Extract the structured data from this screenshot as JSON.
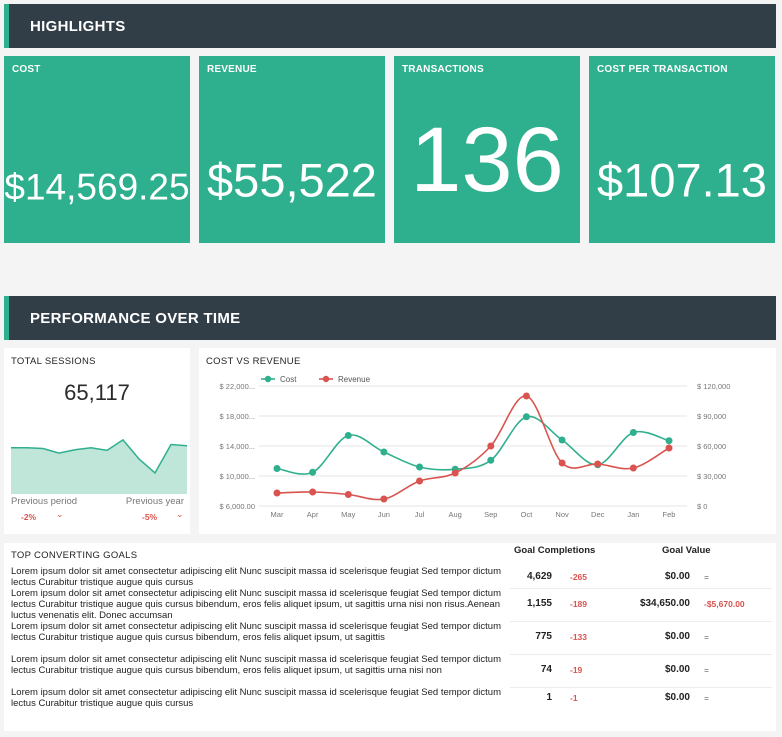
{
  "highlights": {
    "title": "HIGHLIGHTS",
    "kpis": [
      {
        "label": "COST",
        "value": "$14,569.25"
      },
      {
        "label": "REVENUE",
        "value": "$55,522"
      },
      {
        "label": "TRANSACTIONS",
        "value": "136"
      },
      {
        "label": "COST PER TRANSACTION",
        "value": "$107.13"
      }
    ]
  },
  "performance": {
    "title": "PERFORMANCE OVER TIME",
    "sessions": {
      "title": "TOTAL SESSIONS",
      "value": "65,117",
      "sparkline": [
        70,
        70,
        69,
        62,
        67,
        70,
        66,
        82,
        53,
        32,
        75,
        73
      ],
      "prev_period_label": "Previous period",
      "prev_period_value": "-2%",
      "prev_year_label": "Previous year",
      "prev_year_value": "-5%",
      "chevron": "⌄"
    }
  },
  "chart_data": {
    "type": "line",
    "title": "COST VS REVENUE",
    "categories": [
      "Mar",
      "Apr",
      "May",
      "Jun",
      "Jul",
      "Aug",
      "Sep",
      "Oct",
      "Nov",
      "Dec",
      "Jan",
      "Feb"
    ],
    "series": [
      {
        "name": "Cost",
        "axis": "left",
        "color": "#2eaf8e",
        "values": [
          11000,
          10500,
          15400,
          13200,
          11200,
          10900,
          12100,
          17900,
          14800,
          11500,
          15800,
          14700
        ]
      },
      {
        "name": "Revenue",
        "axis": "right",
        "color": "#d9534f",
        "values": [
          13000,
          14000,
          11500,
          7000,
          25000,
          33000,
          60000,
          110000,
          43000,
          42000,
          38000,
          58000
        ]
      }
    ],
    "y_left": {
      "min": 6000,
      "max": 22000,
      "ticks": [
        6000,
        10000,
        14000,
        18000,
        22000
      ],
      "tick_labels": [
        "$ 6,000.00",
        "$ 10,000...",
        "$ 14,000...",
        "$ 18,000...",
        "$ 22,000..."
      ]
    },
    "y_right": {
      "min": 0,
      "max": 120000,
      "ticks": [
        0,
        30000,
        60000,
        90000,
        120000
      ],
      "tick_labels": [
        "$ 0",
        "$ 30,000",
        "$ 60,000",
        "$ 90,000",
        "$ 120,000"
      ]
    },
    "legend_position": "top-left",
    "grid": true
  },
  "goals": {
    "title": "TOP CONVERTING GOALS",
    "col_completions": "Goal Completions",
    "col_value": "Goal Value",
    "rows": [
      {
        "desc": "Lorem ipsum dolor sit amet consectetur adipiscing elit Nunc suscipit massa id scelerisque feugiat Sed tempor dictum lectus Curabitur tristique augue quis cursus",
        "completions": "4,629",
        "completions_delta": "-265",
        "value": "$0.00",
        "value_delta": "="
      },
      {
        "desc": "Lorem ipsum dolor sit amet consectetur adipiscing elit Nunc suscipit massa id scelerisque feugiat Sed tempor dictum lectus Curabitur tristique augue quis cursus bibendum, eros felis aliquet ipsum, ut sagittis urna nisi non risus.Aenean luctus venenatis elit. Donec accumsan",
        "completions": "1,155",
        "completions_delta": "-189",
        "value": "$34,650.00",
        "value_delta": "-$5,670.00"
      },
      {
        "desc": "Lorem ipsum dolor sit amet consectetur adipiscing elit Nunc suscipit massa id scelerisque feugiat Sed tempor dictum lectus Curabitur tristique augue quis cursus bibendum, eros felis aliquet ipsum, ut sagittis",
        "completions": "775",
        "completions_delta": "-133",
        "value": "$0.00",
        "value_delta": "="
      },
      {
        "desc": "Lorem ipsum dolor sit amet consectetur adipiscing elit Nunc suscipit massa id scelerisque feugiat Sed tempor dictum lectus Curabitur tristique augue quis cursus bibendum, eros felis aliquet ipsum, ut sagittis urna nisi non",
        "completions": "74",
        "completions_delta": "-19",
        "value": "$0.00",
        "value_delta": "="
      },
      {
        "desc": "Lorem ipsum dolor sit amet consectetur adipiscing elit Nunc suscipit massa id scelerisque feugiat Sed tempor dictum lectus Curabitur tristique augue quis cursus",
        "completions": "1",
        "completions_delta": "-1",
        "value": "$0.00",
        "value_delta": "="
      }
    ]
  },
  "colors": {
    "accent": "#2eaf8e",
    "header_bg": "#323e47",
    "negative": "#d9534f"
  }
}
